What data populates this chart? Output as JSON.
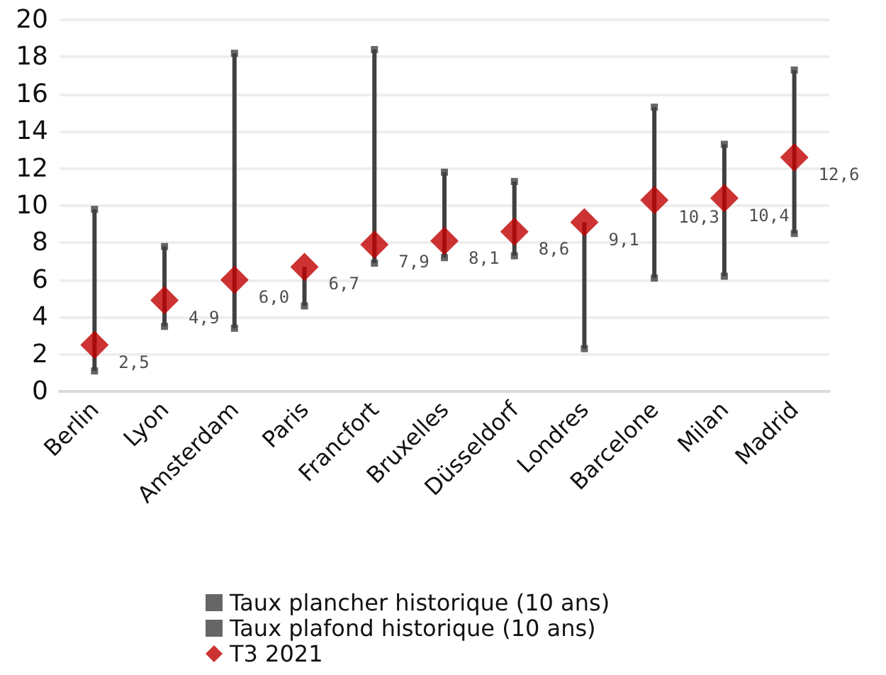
{
  "chart_data": {
    "type": "scatter",
    "categories": [
      "Berlin",
      "Lyon",
      "Amsterdam",
      "Paris",
      "Francfort",
      "Bruxelles",
      "Düsseldorf",
      "Londres",
      "Barcelone",
      "Milan",
      "Madrid"
    ],
    "series": [
      {
        "name": "Taux plancher historique (10 ans)",
        "color": "#404040",
        "marker": "square",
        "values": [
          1.1,
          3.5,
          3.4,
          4.6,
          6.9,
          7.2,
          7.3,
          2.3,
          6.1,
          6.2,
          8.5
        ]
      },
      {
        "name": "Taux plafond historique (10 ans)",
        "color": "#404040",
        "marker": "square",
        "values": [
          9.8,
          7.8,
          18.2,
          null,
          18.4,
          11.8,
          11.3,
          null,
          15.3,
          13.3,
          17.3
        ]
      },
      {
        "name": "T3 2021",
        "color": "#c00000",
        "marker": "diamond",
        "values": [
          2.5,
          4.9,
          6.0,
          6.7,
          7.9,
          8.1,
          8.6,
          9.1,
          10.3,
          10.4,
          12.6
        ],
        "value_labels": [
          "2,5",
          "4,9",
          "6,0",
          "6,7",
          "7,9",
          "8,1",
          "8,6",
          "9,1",
          "10,3",
          "10,4",
          "12,6"
        ]
      }
    ],
    "ylim": [
      0,
      20
    ],
    "yticks": [
      0,
      2,
      4,
      6,
      8,
      10,
      12,
      14,
      16,
      18,
      20
    ],
    "grid": "y",
    "legend": "bottom"
  }
}
